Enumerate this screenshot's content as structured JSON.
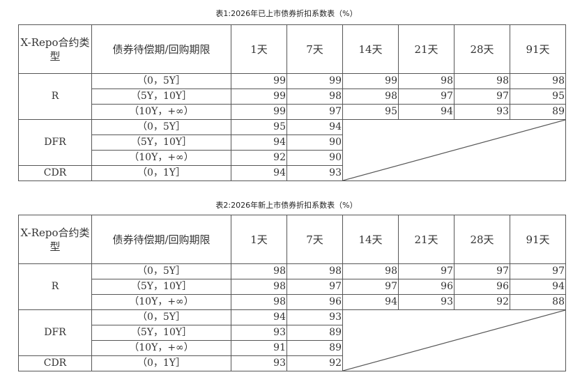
{
  "tables": [
    {
      "title": "表1:2026年已上市债券折扣系数表（%）",
      "header": [
        "X-Repo合约类型",
        "债券待偿期/回购期限",
        "1天",
        "7天",
        "14天",
        "21天",
        "28天",
        "91天"
      ],
      "groups": [
        {
          "type": "R",
          "rows": [
            {
              "term": "（0，5Y］",
              "values": [
                "99",
                "99",
                "99",
                "98",
                "98",
                "98"
              ]
            },
            {
              "term": "（5Y，10Y］",
              "values": [
                "99",
                "98",
                "98",
                "97",
                "97",
                "95"
              ]
            },
            {
              "term": "（10Y，+∞）",
              "values": [
                "99",
                "97",
                "95",
                "94",
                "93",
                "89"
              ]
            }
          ]
        },
        {
          "type": "DFR",
          "rows": [
            {
              "term": "（0，5Y］",
              "values": [
                "95",
                "94"
              ]
            },
            {
              "term": "（5Y，10Y］",
              "values": [
                "94",
                "90"
              ]
            },
            {
              "term": "（10Y，+∞）",
              "values": [
                "92",
                "90"
              ]
            }
          ]
        },
        {
          "type": "CDR",
          "rows": [
            {
              "term": "（0，1Y］",
              "values": [
                "94",
                "93"
              ]
            }
          ]
        }
      ]
    },
    {
      "title": "表2:2026年新上市债券折扣系数表（%）",
      "header": [
        "X-Repo合约类型",
        "债券待偿期/回购期限",
        "1天",
        "7天",
        "14天",
        "21天",
        "28天",
        "91天"
      ],
      "groups": [
        {
          "type": "R",
          "rows": [
            {
              "term": "（0，5Y］",
              "values": [
                "98",
                "98",
                "98",
                "97",
                "97",
                "97"
              ]
            },
            {
              "term": "（5Y，10Y］",
              "values": [
                "98",
                "97",
                "97",
                "96",
                "96",
                "94"
              ]
            },
            {
              "term": "（10Y，+∞）",
              "values": [
                "98",
                "96",
                "94",
                "93",
                "92",
                "88"
              ]
            }
          ]
        },
        {
          "type": "DFR",
          "rows": [
            {
              "term": "（0，5Y］",
              "values": [
                "94",
                "93"
              ]
            },
            {
              "term": "（5Y，10Y］",
              "values": [
                "93",
                "89"
              ]
            },
            {
              "term": "（10Y，+∞）",
              "values": [
                "91",
                "89"
              ]
            }
          ]
        },
        {
          "type": "CDR",
          "rows": [
            {
              "term": "（0，1Y］",
              "values": [
                "93",
                "92"
              ]
            }
          ]
        }
      ]
    }
  ]
}
